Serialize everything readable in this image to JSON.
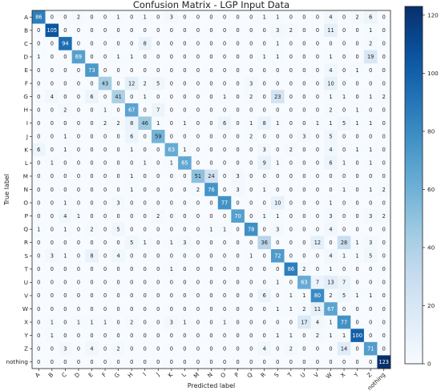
{
  "chart_data": {
    "type": "heatmap",
    "title": "Confusion Matrix - LGP Input Data",
    "xlabel": "Predicted label",
    "ylabel": "True label",
    "labels": [
      "A",
      "B",
      "C",
      "D",
      "E",
      "F",
      "G",
      "H",
      "I",
      "J",
      "K",
      "L",
      "M",
      "N",
      "O",
      "P",
      "Q",
      "R",
      "S",
      "T",
      "U",
      "V",
      "W",
      "X",
      "Y",
      "Z",
      "nothing"
    ],
    "matrix": [
      [
        86,
        0,
        0,
        2,
        0,
        0,
        1,
        0,
        1,
        0,
        3,
        0,
        0,
        0,
        0,
        0,
        0,
        1,
        1,
        0,
        0,
        0,
        4,
        0,
        2,
        6,
        0
      ],
      [
        0,
        105,
        0,
        0,
        0,
        0,
        0,
        0,
        0,
        0,
        0,
        0,
        0,
        0,
        0,
        0,
        0,
        0,
        3,
        2,
        0,
        0,
        11,
        0,
        0,
        1,
        0
      ],
      [
        0,
        0,
        94,
        0,
        0,
        0,
        0,
        0,
        8,
        0,
        0,
        0,
        0,
        0,
        0,
        0,
        0,
        0,
        1,
        0,
        0,
        0,
        0,
        0,
        0,
        2,
        0
      ],
      [
        1,
        0,
        0,
        69,
        0,
        0,
        1,
        1,
        0,
        0,
        0,
        0,
        0,
        0,
        0,
        0,
        0,
        1,
        1,
        0,
        0,
        0,
        1,
        0,
        0,
        19,
        0
      ],
      [
        0,
        0,
        0,
        0,
        73,
        0,
        0,
        0,
        0,
        0,
        0,
        0,
        0,
        0,
        0,
        0,
        0,
        0,
        0,
        0,
        0,
        0,
        4,
        0,
        1,
        0,
        0
      ],
      [
        0,
        0,
        0,
        0,
        0,
        43,
        0,
        12,
        2,
        5,
        0,
        0,
        0,
        0,
        0,
        0,
        3,
        0,
        0,
        0,
        0,
        0,
        10,
        0,
        0,
        0,
        0
      ],
      [
        0,
        4,
        0,
        0,
        6,
        0,
        41,
        0,
        1,
        0,
        0,
        0,
        0,
        0,
        1,
        0,
        2,
        0,
        23,
        0,
        0,
        0,
        1,
        1,
        0,
        1,
        2
      ],
      [
        0,
        0,
        2,
        0,
        0,
        1,
        0,
        67,
        0,
        7,
        0,
        0,
        0,
        0,
        0,
        0,
        0,
        0,
        0,
        0,
        0,
        0,
        2,
        0,
        1,
        0,
        0
      ],
      [
        0,
        0,
        0,
        0,
        0,
        2,
        2,
        8,
        46,
        1,
        0,
        1,
        0,
        0,
        6,
        0,
        1,
        8,
        1,
        0,
        0,
        1,
        1,
        5,
        1,
        1,
        0
      ],
      [
        0,
        0,
        1,
        0,
        0,
        0,
        0,
        6,
        0,
        59,
        0,
        0,
        0,
        0,
        0,
        0,
        2,
        0,
        0,
        0,
        3,
        0,
        5,
        0,
        0,
        0,
        0
      ],
      [
        6,
        0,
        1,
        0,
        0,
        0,
        0,
        1,
        0,
        0,
        63,
        1,
        0,
        0,
        0,
        0,
        0,
        3,
        0,
        2,
        0,
        0,
        4,
        0,
        1,
        1,
        0
      ],
      [
        0,
        1,
        0,
        0,
        0,
        0,
        0,
        0,
        1,
        0,
        1,
        65,
        0,
        0,
        0,
        0,
        0,
        9,
        1,
        0,
        0,
        0,
        6,
        1,
        0,
        1,
        0
      ],
      [
        0,
        0,
        0,
        0,
        0,
        0,
        0,
        1,
        0,
        0,
        0,
        0,
        51,
        24,
        0,
        3,
        0,
        0,
        0,
        0,
        0,
        0,
        0,
        0,
        0,
        0,
        0
      ],
      [
        0,
        0,
        0,
        0,
        0,
        0,
        0,
        1,
        0,
        0,
        0,
        0,
        2,
        76,
        0,
        3,
        0,
        1,
        0,
        0,
        0,
        0,
        0,
        1,
        0,
        1,
        2
      ],
      [
        0,
        0,
        1,
        0,
        0,
        0,
        3,
        0,
        0,
        0,
        0,
        0,
        0,
        0,
        77,
        0,
        0,
        0,
        10,
        0,
        0,
        0,
        1,
        0,
        0,
        0,
        0
      ],
      [
        0,
        0,
        4,
        1,
        0,
        0,
        0,
        0,
        0,
        2,
        0,
        0,
        0,
        0,
        0,
        70,
        0,
        1,
        1,
        0,
        0,
        0,
        3,
        0,
        0,
        3,
        2
      ],
      [
        1,
        0,
        1,
        0,
        2,
        0,
        5,
        0,
        0,
        0,
        0,
        0,
        0,
        1,
        1,
        0,
        78,
        0,
        3,
        0,
        0,
        0,
        4,
        0,
        0,
        0,
        0
      ],
      [
        0,
        0,
        0,
        0,
        0,
        0,
        0,
        5,
        1,
        0,
        1,
        3,
        0,
        0,
        0,
        0,
        0,
        36,
        0,
        0,
        0,
        12,
        0,
        28,
        1,
        3,
        0
      ],
      [
        0,
        3,
        1,
        0,
        8,
        0,
        4,
        0,
        0,
        0,
        0,
        0,
        0,
        0,
        0,
        0,
        1,
        0,
        72,
        0,
        0,
        0,
        4,
        1,
        1,
        5,
        0
      ],
      [
        0,
        0,
        0,
        0,
        0,
        0,
        0,
        0,
        0,
        0,
        1,
        0,
        0,
        0,
        0,
        0,
        0,
        0,
        0,
        86,
        2,
        0,
        1,
        0,
        0,
        0,
        0
      ],
      [
        0,
        0,
        0,
        0,
        0,
        0,
        0,
        0,
        0,
        0,
        0,
        0,
        0,
        0,
        0,
        0,
        0,
        0,
        1,
        0,
        63,
        7,
        13,
        7,
        0,
        0,
        0
      ],
      [
        0,
        0,
        0,
        0,
        0,
        0,
        0,
        0,
        0,
        0,
        0,
        0,
        0,
        0,
        0,
        0,
        0,
        6,
        0,
        1,
        1,
        80,
        2,
        5,
        1,
        1,
        0
      ],
      [
        0,
        0,
        0,
        0,
        0,
        0,
        0,
        0,
        0,
        0,
        0,
        0,
        0,
        0,
        0,
        0,
        0,
        0,
        1,
        1,
        2,
        11,
        67,
        0,
        0,
        0,
        0
      ],
      [
        0,
        1,
        0,
        1,
        1,
        1,
        0,
        2,
        0,
        0,
        3,
        1,
        0,
        0,
        1,
        0,
        0,
        0,
        0,
        0,
        17,
        4,
        1,
        77,
        0,
        0,
        0
      ],
      [
        0,
        1,
        0,
        0,
        0,
        0,
        0,
        0,
        0,
        0,
        0,
        0,
        0,
        0,
        0,
        0,
        0,
        0,
        1,
        1,
        0,
        2,
        1,
        1,
        100,
        0,
        0
      ],
      [
        0,
        0,
        3,
        0,
        4,
        0,
        2,
        0,
        0,
        0,
        0,
        0,
        0,
        0,
        0,
        0,
        0,
        4,
        0,
        2,
        0,
        0,
        0,
        14,
        0,
        71,
        0
      ],
      [
        0,
        0,
        0,
        0,
        0,
        0,
        0,
        0,
        0,
        0,
        0,
        0,
        0,
        0,
        0,
        0,
        0,
        0,
        0,
        0,
        0,
        0,
        0,
        0,
        0,
        0,
        123
      ]
    ],
    "colorbar": {
      "range": [
        0,
        123
      ],
      "ticks": [
        0,
        20,
        40,
        60,
        80,
        100,
        120
      ]
    },
    "colormap": {
      "low": "#f7fbff",
      "high": "#08306b"
    },
    "grid": false
  }
}
